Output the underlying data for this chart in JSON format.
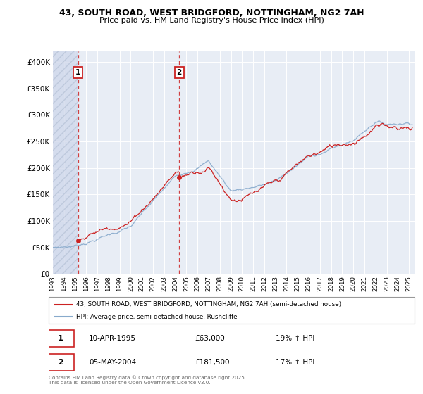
{
  "title_line1": "43, SOUTH ROAD, WEST BRIDGFORD, NOTTINGHAM, NG2 7AH",
  "title_line2": "Price paid vs. HM Land Registry's House Price Index (HPI)",
  "plot_bg": "#e8edf5",
  "purchase1_date": 1995.27,
  "purchase1_price": 63000,
  "purchase2_date": 2004.35,
  "purchase2_price": 181500,
  "legend_label1": "43, SOUTH ROAD, WEST BRIDGFORD, NOTTINGHAM, NG2 7AH (semi-detached house)",
  "legend_label2": "HPI: Average price, semi-detached house, Rushcliffe",
  "annot1_date": "10-APR-1995",
  "annot1_price": "£63,000",
  "annot1_hpi": "19% ↑ HPI",
  "annot2_date": "05-MAY-2004",
  "annot2_price": "£181,500",
  "annot2_hpi": "17% ↑ HPI",
  "footer": "Contains HM Land Registry data © Crown copyright and database right 2025.\nThis data is licensed under the Open Government Licence v3.0.",
  "red_line_color": "#cc2222",
  "blue_line_color": "#88aacc",
  "xlim_min": 1993.0,
  "xlim_max": 2025.5,
  "ylim_min": 0,
  "ylim_max": 420000
}
